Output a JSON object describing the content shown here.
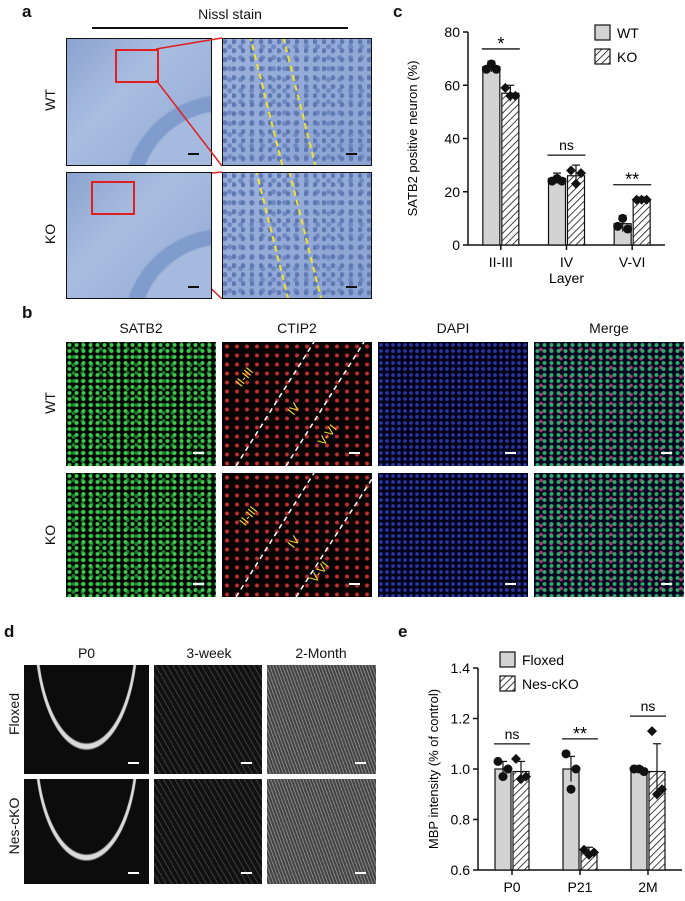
{
  "panel_a": {
    "letter": "a",
    "title": "Nissl stain",
    "rows": [
      "WT",
      "KO"
    ]
  },
  "panel_b": {
    "letter": "b",
    "columns": [
      "SATB2",
      "CTIP2",
      "DAPI",
      "Merge"
    ],
    "rows": [
      "WT",
      "KO"
    ],
    "layer_labels": [
      "II-III",
      "IV",
      "V-VI"
    ]
  },
  "panel_d": {
    "letter": "d",
    "columns": [
      "P0",
      "3-week",
      "2-Month"
    ],
    "rows": [
      "Floxed",
      "Nes-cKO"
    ]
  },
  "chart_data": [
    {
      "panel": "c",
      "type": "bar",
      "categories": [
        "II-III",
        "IV",
        "V-VI"
      ],
      "xlabel": "Layer",
      "ylabel": "SATB2 positive neuron (%)",
      "ylim": [
        0,
        80
      ],
      "yticks": [
        0,
        20,
        40,
        60,
        80
      ],
      "legend_position": "top-right",
      "series": [
        {
          "name": "WT",
          "values": [
            67,
            25,
            8
          ],
          "errors": [
            2,
            2,
            3
          ],
          "pattern": "solid",
          "color": "#d3d3d3",
          "points": [
            [
              66,
              68,
              66
            ],
            [
              24,
              25,
              24
            ],
            [
              7,
              10,
              6
            ]
          ]
        },
        {
          "name": "KO",
          "values": [
            57,
            26,
            17
          ],
          "errors": [
            3,
            4,
            1
          ],
          "pattern": "hatched",
          "color": "#ffffff",
          "points": [
            [
              59,
              56,
              56
            ],
            [
              28,
              23,
              27
            ],
            [
              17,
              17,
              17
            ]
          ]
        }
      ],
      "significance": [
        "*",
        "ns",
        "**"
      ]
    },
    {
      "panel": "e",
      "type": "bar",
      "categories": [
        "P0",
        "P21",
        "2M"
      ],
      "xlabel": "",
      "ylabel": "MBP intensity (% of control)",
      "ylim": [
        0.6,
        1.4
      ],
      "yticks": [
        0.6,
        0.8,
        1.0,
        1.2,
        1.4
      ],
      "legend_position": "top-left",
      "series": [
        {
          "name": "Floxed",
          "values": [
            1.0,
            1.0,
            1.0
          ],
          "errors": [
            0.03,
            0.05,
            0.01
          ],
          "pattern": "solid",
          "color": "#d3d3d3",
          "points": [
            [
              1.03,
              0.97,
              1.0
            ],
            [
              1.06,
              0.92,
              1.0
            ],
            [
              1.0,
              1.0,
              0.99
            ]
          ]
        },
        {
          "name": "Nes-cKO",
          "values": [
            0.99,
            0.67,
            0.99
          ],
          "errors": [
            0.04,
            0.02,
            0.11
          ],
          "pattern": "hatched",
          "color": "#ffffff",
          "points": [
            [
              1.04,
              0.96,
              0.97
            ],
            [
              0.68,
              0.66,
              0.67
            ],
            [
              1.15,
              0.9,
              0.92
            ]
          ]
        }
      ],
      "significance": [
        "ns",
        "**",
        "ns"
      ]
    }
  ]
}
